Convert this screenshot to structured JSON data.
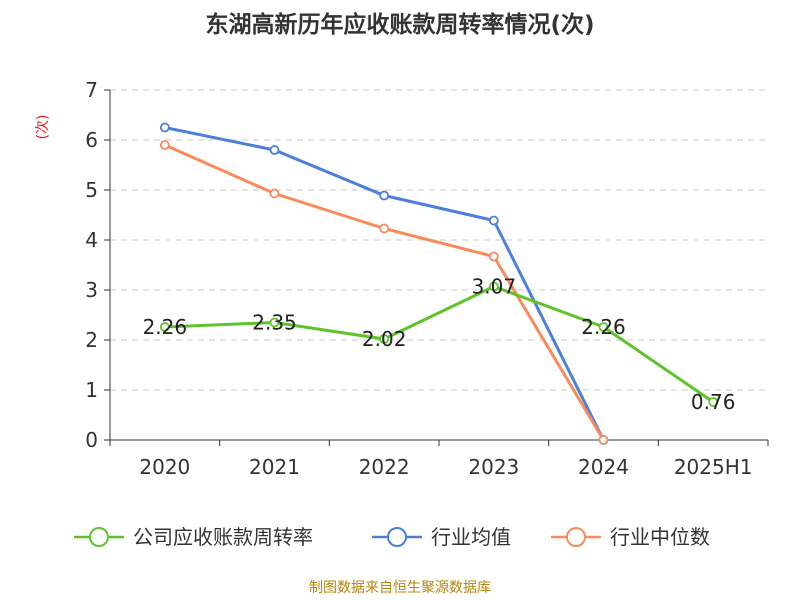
{
  "chart_data": {
    "type": "line",
    "title": "东湖高新历年应收账款周转率情况(次)",
    "ylabel": "(次)",
    "xlabel": "",
    "categories": [
      "2020",
      "2021",
      "2022",
      "2023",
      "2024",
      "2025H1"
    ],
    "ylim": [
      0,
      7
    ],
    "yticks": [
      0,
      1,
      2,
      3,
      4,
      5,
      6,
      7
    ],
    "grid": true,
    "legend_position": "bottom",
    "series": [
      {
        "name": "公司应收账款周转率",
        "color": "#5ec32a",
        "values": [
          2.26,
          2.35,
          2.02,
          3.07,
          2.26,
          0.76
        ],
        "labels": [
          "2.26",
          "2.35",
          "2.02",
          "3.07",
          "2.26",
          "0.76"
        ]
      },
      {
        "name": "行业均值",
        "color": "#4a7fdc",
        "values": [
          6.25,
          5.8,
          4.89,
          4.39,
          0.0,
          null
        ]
      },
      {
        "name": "行业中位数",
        "color": "#f98b5b",
        "values": [
          5.9,
          4.93,
          4.23,
          3.67,
          0.0,
          null
        ]
      }
    ]
  },
  "source": "制图数据来自恒生聚源数据库"
}
